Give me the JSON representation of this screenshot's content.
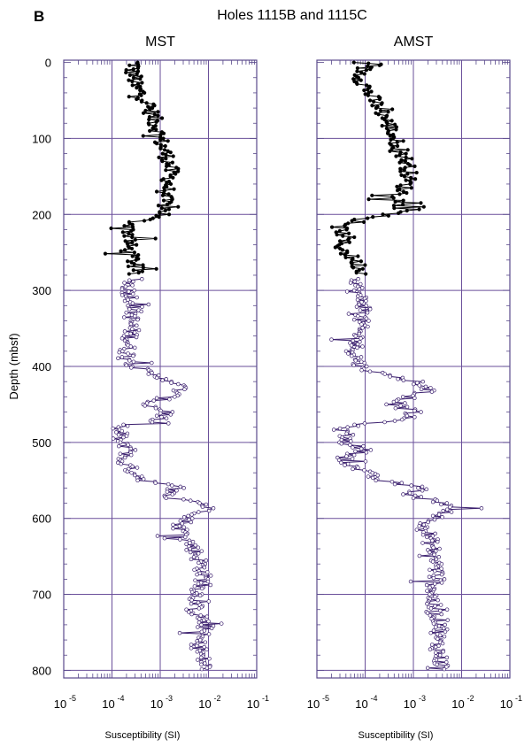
{
  "figure": {
    "panel_letter": "B",
    "title": "Holes 1115B and 1115C"
  },
  "colors": {
    "frame": "#5a4a8c",
    "grid": "#6a4f9a",
    "black_series": "#000000",
    "purple_series": "#3b1f6e"
  },
  "chart_data": [
    {
      "type": "scatter",
      "title": "MST",
      "xlabel": "Susceptibility  (SI)",
      "ylabel": "Depth (mbsf)",
      "x_scale": "log",
      "xlim": [
        1e-05,
        0.1
      ],
      "ylim": [
        810,
        -3
      ],
      "x_ticks": [
        {
          "base": "10",
          "exp": "-5"
        },
        {
          "base": "10",
          "exp": "-4"
        },
        {
          "base": "10",
          "exp": "-3"
        },
        {
          "base": "10",
          "exp": "-2"
        },
        {
          "base": "10",
          "exp": "-1"
        }
      ],
      "y_ticks": [
        "0",
        "100",
        "200",
        "300",
        "400",
        "500",
        "600",
        "700",
        "800"
      ],
      "grid": true,
      "series": [
        {
          "color": "black",
          "marker": "filled-circle",
          "points": [
            [
              0,
              0.0003
            ],
            [
              5,
              0.0003
            ],
            [
              10,
              0.00025
            ],
            [
              20,
              0.0003
            ],
            [
              30,
              0.00028
            ],
            [
              40,
              0.0004
            ],
            [
              50,
              0.0005
            ],
            [
              60,
              0.0006
            ],
            [
              70,
              0.0007
            ],
            [
              80,
              0.0008
            ],
            [
              90,
              0.0009
            ],
            [
              100,
              0.001
            ],
            [
              110,
              0.0011
            ],
            [
              120,
              0.0013
            ],
            [
              130,
              0.0015
            ],
            [
              140,
              0.0016
            ],
            [
              150,
              0.0016
            ],
            [
              160,
              0.0015
            ],
            [
              170,
              0.0013
            ],
            [
              180,
              0.0012
            ],
            [
              190,
              0.0013
            ],
            [
              200,
              0.0012
            ],
            [
              210,
              0.0003
            ],
            [
              220,
              0.00022
            ],
            [
              230,
              0.00025
            ],
            [
              240,
              0.00022
            ],
            [
              250,
              0.00022
            ],
            [
              260,
              0.00028
            ],
            [
              270,
              0.0003
            ],
            [
              280,
              0.00028
            ]
          ]
        },
        {
          "color": "purple",
          "marker": "open-circle",
          "points": [
            [
              285,
              0.00025
            ],
            [
              300,
              0.00022
            ],
            [
              320,
              0.0003
            ],
            [
              340,
              0.00025
            ],
            [
              360,
              0.00025
            ],
            [
              380,
              0.0002
            ],
            [
              400,
              0.0003
            ],
            [
              410,
              0.0006
            ],
            [
              420,
              0.002
            ],
            [
              430,
              0.0028
            ],
            [
              440,
              0.0015
            ],
            [
              450,
              0.0005
            ],
            [
              460,
              0.0015
            ],
            [
              470,
              0.0009
            ],
            [
              480,
              0.00012
            ],
            [
              490,
              0.00015
            ],
            [
              500,
              0.00013
            ],
            [
              510,
              0.0003
            ],
            [
              520,
              0.00015
            ],
            [
              530,
              0.0002
            ],
            [
              540,
              0.0003
            ],
            [
              550,
              0.0005
            ],
            [
              560,
              0.0025
            ],
            [
              570,
              0.0012
            ],
            [
              580,
              0.008
            ],
            [
              590,
              0.01
            ],
            [
              600,
              0.004
            ],
            [
              610,
              0.0025
            ],
            [
              620,
              0.003
            ],
            [
              640,
              0.005
            ],
            [
              660,
              0.007
            ],
            [
              680,
              0.008
            ],
            [
              700,
              0.006
            ],
            [
              720,
              0.005
            ],
            [
              740,
              0.009
            ],
            [
              760,
              0.006
            ],
            [
              780,
              0.007
            ],
            [
              800,
              0.009
            ]
          ]
        }
      ]
    },
    {
      "type": "scatter",
      "title": "AMST",
      "xlabel": "Susceptibility  (SI)",
      "ylabel": "",
      "x_scale": "log",
      "xlim": [
        1e-05,
        0.1
      ],
      "ylim": [
        810,
        -3
      ],
      "x_ticks": [
        {
          "base": "10",
          "exp": "-5"
        },
        {
          "base": "10",
          "exp": "-4"
        },
        {
          "base": "10",
          "exp": "-3"
        },
        {
          "base": "10",
          "exp": "-2"
        },
        {
          "base": "10",
          "exp": "-1"
        }
      ],
      "grid": true,
      "series": [
        {
          "color": "black",
          "marker": "filled-circle",
          "points": [
            [
              0,
              8e-05
            ],
            [
              5,
              0.0001
            ],
            [
              10,
              9e-05
            ],
            [
              20,
              8e-05
            ],
            [
              30,
              0.0001
            ],
            [
              40,
              0.00012
            ],
            [
              50,
              0.00015
            ],
            [
              60,
              0.0002
            ],
            [
              70,
              0.00025
            ],
            [
              80,
              0.0003
            ],
            [
              90,
              0.00035
            ],
            [
              100,
              0.0004
            ],
            [
              110,
              0.0005
            ],
            [
              120,
              0.0006
            ],
            [
              130,
              0.0007
            ],
            [
              140,
              0.0008
            ],
            [
              150,
              0.0008
            ],
            [
              160,
              0.0007
            ],
            [
              170,
              0.0006
            ],
            [
              180,
              0.0005
            ],
            [
              190,
              0.0006
            ],
            [
              200,
              0.0005
            ],
            [
              210,
              3e-05
            ],
            [
              220,
              3e-05
            ],
            [
              230,
              4e-05
            ],
            [
              240,
              3e-05
            ],
            [
              250,
              4e-05
            ],
            [
              260,
              6e-05
            ],
            [
              270,
              8e-05
            ],
            [
              280,
              9e-05
            ]
          ]
        },
        {
          "color": "purple",
          "marker": "open-circle",
          "points": [
            [
              285,
              8e-05
            ],
            [
              300,
              6e-05
            ],
            [
              320,
              0.0001
            ],
            [
              340,
              8e-05
            ],
            [
              360,
              7e-05
            ],
            [
              380,
              6e-05
            ],
            [
              400,
              8e-05
            ],
            [
              410,
              0.0002
            ],
            [
              420,
              0.0012
            ],
            [
              430,
              0.0018
            ],
            [
              440,
              0.0009
            ],
            [
              450,
              0.0004
            ],
            [
              460,
              0.001
            ],
            [
              470,
              0.0006
            ],
            [
              480,
              3e-05
            ],
            [
              490,
              4e-05
            ],
            [
              500,
              4e-05
            ],
            [
              510,
              0.0001
            ],
            [
              520,
              4e-05
            ],
            [
              530,
              5e-05
            ],
            [
              540,
              0.0001
            ],
            [
              550,
              0.0002
            ],
            [
              560,
              0.0015
            ],
            [
              570,
              0.0008
            ],
            [
              580,
              0.005
            ],
            [
              590,
              0.006
            ],
            [
              600,
              0.0025
            ],
            [
              610,
              0.0015
            ],
            [
              620,
              0.002
            ],
            [
              640,
              0.0025
            ],
            [
              660,
              0.003
            ],
            [
              680,
              0.003
            ],
            [
              700,
              0.0025
            ],
            [
              720,
              0.0025
            ],
            [
              740,
              0.004
            ],
            [
              760,
              0.003
            ],
            [
              780,
              0.0035
            ],
            [
              800,
              0.004
            ]
          ]
        }
      ]
    }
  ]
}
